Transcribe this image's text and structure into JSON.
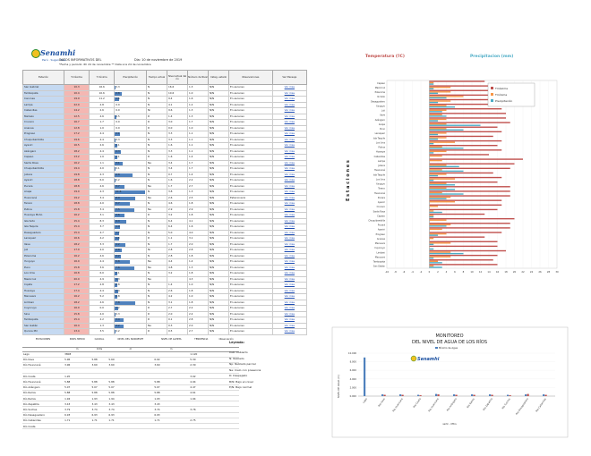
{
  "header": {
    "brand": "Senamhi",
    "tagline": "Perú · Sugen Tuse",
    "title": "DATOS INFORMATIVOS DEL",
    "date": "Dia: 10 de noviembre de 2019",
    "subtitle": "*Fecha y periodo: 6h 24 de noviembre  ** Data a la 24 de noviembre"
  },
  "table": {
    "headers": [
      "Estación",
      "T.máxima",
      "T.mínima",
      "Precipitación",
      "Tiempo actual",
      "Nivel actual del río",
      "Número de Nivel",
      "Categ. estado",
      "Observaciones",
      "Ver Mensaje"
    ],
    "rows": [
      [
        "San Gabriel",
        "10.3",
        "16.6",
        "0.3",
        "N",
        "16.6",
        "1.3",
        "N/N",
        "En ascenso",
        "Ver mas"
      ],
      [
        "Tambopata",
        "10.4",
        "10.6",
        "2.8",
        "N",
        "10.6",
        "1.0",
        "N/N",
        "En ascenso",
        "Ver mas"
      ],
      [
        "Cancosa",
        "19.9",
        "11.2",
        "1.6",
        "N",
        "9.4",
        "1.6",
        "N/N",
        "En ascenso",
        "Ver mas"
      ],
      [
        "Lampa",
        "22.0",
        "2.8",
        "0.0",
        "N",
        "4.1",
        "1.2",
        "N/N",
        "En ascenso",
        "Ver mas"
      ],
      [
        "Cabanillas",
        "14.2",
        "2.6",
        "0.0",
        "Ni",
        "9.6",
        "1.3",
        "N/N",
        "En ascenso",
        "Ver mas"
      ],
      [
        "Mañazo",
        "12.5",
        "4.6",
        "0.5",
        "D",
        "1.4",
        "1.3",
        "N/N",
        "En ascenso",
        "Ver mas"
      ],
      [
        "Crucero",
        "16.7",
        "1.7",
        "0.0",
        "D",
        "3.0",
        "1.7",
        "N/N",
        "En ascenso",
        "Ver mas"
      ],
      [
        "Ananea",
        "12.8",
        "1.0",
        "0.0",
        "D",
        "0.0",
        "1.0",
        "N/N",
        "En ascenso",
        "Ver mas"
      ],
      [
        "Progreso",
        "17.2",
        "4.4",
        "2.1",
        "N",
        "3.3",
        "1.1",
        "N/N",
        "En ascenso",
        "Ver mas"
      ],
      [
        "Chuquibambilla",
        "19.6",
        "4.4",
        "0.3",
        "N",
        "3.3",
        "1.1",
        "N/N",
        "En ascenso",
        "Ver mas"
      ],
      [
        "Ayaviri",
        "16.5",
        "2.6",
        "1.1",
        "N",
        "1.6",
        "1.1",
        "N/N",
        "En ascenso",
        "Ver mas"
      ],
      [
        "Azángaro",
        "18.2",
        "4.4",
        "2.3",
        "N",
        "3.3",
        "1.1",
        "N/N",
        "En ascenso",
        "Ver mas"
      ],
      [
        "Capaso",
        "13.2",
        "1.0",
        "1.1",
        "D",
        "1.6",
        "1.4",
        "N/N",
        "En ascenso",
        "Ver mas"
      ],
      [
        "Santa Rosa",
        "16.2",
        "1.1",
        "3.1",
        "Ne",
        "3.4",
        "1.7",
        "N/N",
        "En ascenso",
        "Ver mas"
      ],
      [
        "Chuquibambilla",
        "19.4",
        "4.0",
        "0.1",
        "N",
        "3.4",
        "1.7",
        "N/N",
        "En ascenso",
        "Ver mas"
      ],
      [
        "Juliaca",
        "19.8",
        "4.3",
        "6.8",
        "N",
        "0.7",
        "1.4",
        "N/N",
        "En ascenso",
        "Ver mas"
      ],
      [
        "Ayaviri",
        "18.8",
        "6.0",
        "0.2",
        "N",
        "1.6",
        "2.2",
        "N/N",
        "En ascenso",
        "Ver mas"
      ],
      [
        "Pucara",
        "18.8",
        "4.6",
        "3.7",
        "Ne",
        "1.7",
        "2.7",
        "N/N",
        "En ascenso",
        "Ver mas"
      ],
      [
        "Arapa",
        "19.0",
        "4.3",
        "11.6",
        "N",
        "3.8",
        "1.3",
        "N/N",
        "En ascenso",
        "Ver mas"
      ],
      [
        "Huancané",
        "19.2",
        "3.4",
        "8.0",
        "Ne",
        "2.6",
        "2.5",
        "N/N",
        "Estacionario",
        "Ver mas"
      ],
      [
        "Taraco",
        "18.8",
        "4.0",
        "5.7",
        "N",
        "4.6",
        "1.8",
        "N/N",
        "En ascenso",
        "Ver mas"
      ],
      [
        "Putina",
        "15.8",
        "3.4",
        "7.5",
        "Ne",
        "2.9",
        "2.9",
        "N/N",
        "En ascenso",
        "Ver mas"
      ],
      [
        "Huaraya Moho",
        "16.2",
        "3.1",
        "3.6",
        "D",
        "3.2",
        "1.8",
        "N/N",
        "En ascenso",
        "Ver mas"
      ],
      [
        "Isla Soto",
        "15.4",
        "8.3",
        "4.4",
        "N",
        "6.4",
        "4.1",
        "N/N",
        "En ascenso",
        "Ver mas"
      ],
      [
        "Isla Taquile",
        "15.4",
        "3.7",
        "1.9",
        "N",
        "6.4",
        "1.6",
        "N/N",
        "En ascenso",
        "Ver mas"
      ],
      [
        "Desaguadero",
        "15.4",
        "4.7",
        "1.7",
        "N",
        "5.0",
        "4.0",
        "N/N",
        "En ascenso",
        "Ver mas"
      ],
      [
        "Laraqueri",
        "16.6",
        "4.2",
        "1.8",
        "D",
        "1.1",
        "3.1",
        "N/N",
        "En ascenso",
        "Ver mas"
      ],
      [
        "Ilave",
        "18.2",
        "3.3",
        "4.2",
        "N",
        "1.7",
        "2.0",
        "N/N",
        "En ascenso",
        "Ver mas"
      ],
      [
        "Juli",
        "17.0",
        "4.0",
        "2.8",
        "Ni",
        "2.8",
        "2.8",
        "N/N",
        "En ascenso",
        "Ver mas"
      ],
      [
        "Pizacoma",
        "16.2",
        "4.6",
        "2.2",
        "N",
        "2.8",
        "1.8",
        "N/N",
        "En ascenso",
        "Ver mas"
      ],
      [
        "Yunguyo",
        "16.0",
        "4.4",
        "5.8",
        "Ne",
        "4.4",
        "1.4",
        "N/N",
        "En ascenso",
        "Ver mas"
      ],
      [
        "Puno",
        "15.8",
        "3.6",
        "7.6",
        "Ne",
        "4.8",
        "1.3",
        "N/N",
        "En ascenso",
        "Ver mas"
      ],
      [
        "Los Uros",
        "16.8",
        "6.0",
        "1.1",
        "N",
        "3.2",
        "1.8",
        "N/N",
        "En ascenso",
        "Ver mas"
      ],
      [
        "Mazocruz",
        "20.0",
        "4.9",
        "1.3",
        "Ne",
        "",
        "4.3",
        "N/N",
        "En ascenso",
        "Ver mas"
      ],
      [
        "Cojata",
        "17.2",
        "2.8",
        "0.8",
        "N",
        "1.4",
        "1.0",
        "N/N",
        "En ascenso",
        "Ver mas"
      ],
      [
        "Huaraya",
        "17.4",
        "4.4",
        "1.4",
        "N",
        "2.6",
        "1.8",
        "N/N",
        "En ascenso",
        "Ver mas"
      ],
      [
        "Macusani",
        "16.2",
        "5.2",
        "0.8",
        "N",
        "4.2",
        "1.0",
        "N/N",
        "En ascenso",
        "Ver mas"
      ],
      [
        "Limbani",
        "18.2",
        "4.6",
        "7.8",
        "N",
        "3.1",
        "1.8",
        "N/N",
        "En ascenso",
        "Ver mas"
      ],
      [
        "Cuyocuyo",
        "16.0",
        "0.0",
        "1.2",
        "D",
        "2.7",
        "2.2",
        "N/N",
        "En ascenso",
        "Ver mas"
      ],
      [
        "Sina",
        "15.8",
        "4.0",
        "0.3",
        "D",
        "2.0",
        "2.4",
        "N/N",
        "En ascenso",
        "Ver mas"
      ],
      [
        "Tambopata",
        "15.4",
        "2.2",
        "3.4",
        "D",
        "0.1",
        "2.8",
        "N/N",
        "En ascenso",
        "Ver mas"
      ],
      [
        "San Gabán",
        "16.4",
        "1.3",
        "3.2",
        "Ne",
        "0.3",
        "2.0",
        "N/N",
        "En ascenso",
        "Ver mas"
      ],
      [
        "Quince Mil",
        "13.4",
        "3.5",
        "0.2",
        "D",
        "0.5",
        "2.7",
        "N/N",
        "En ascenso",
        "Ver mas"
      ]
    ]
  },
  "river_table": {
    "headers": [
      "ESTACIONES",
      "NIVEL MEDIO",
      "CAUDAL",
      "NIVEL DEL NOROESTE",
      "NIVEL DE ALERTA",
      "TENDENCIA",
      "Observación"
    ],
    "sub": [
      "",
      "m",
      "m3/s",
      "m",
      "m",
      "",
      ""
    ],
    "rows": [
      [
        "Lago",
        "3808",
        "",
        "",
        "",
        "1.120",
        ""
      ],
      [
        "Río Ilave",
        "5.96",
        "5.88",
        "5.69",
        "0.02",
        "5.30",
        ""
      ],
      [
        "Río Huancané",
        "3.96",
        "3.60",
        "3.60",
        "3.60",
        "2.30",
        ""
      ],
      [
        "",
        "",
        "",
        "",
        "",
        "",
        ""
      ],
      [
        "Río Coata",
        "1.20",
        "",
        "",
        "",
        "3.02",
        ""
      ],
      [
        "Río Huancané",
        "5.88",
        "5.88",
        "5.88",
        "5.88",
        "4.94",
        ""
      ],
      [
        "Río Azángaro",
        "5.07",
        "5.07",
        "5.07",
        "5.07",
        "4.47",
        ""
      ],
      [
        "Río Ramis",
        "5.88",
        "5.88",
        "5.88",
        "5.88",
        "4.61",
        ""
      ],
      [
        "Río Ramis",
        "1.94",
        "1.93",
        "1.94",
        "1.93",
        "1.94",
        ""
      ],
      [
        "Río Zapatilla",
        "3.43",
        "3.43",
        "3.43",
        "3.43",
        "",
        ""
      ],
      [
        "Río Suches",
        "3.79",
        "3.74",
        "3.74",
        "3.74",
        "3.76",
        ""
      ],
      [
        "Río Desaguadero",
        "6.93",
        "6.93",
        "6.93",
        "6.93",
        "",
        ""
      ],
      [
        "Río Cabanillas",
        "1.71",
        "1.71",
        "1.71",
        "1.71",
        "2.75",
        ""
      ],
      [
        "Río Coata",
        "",
        "",
        "",
        "",
        "",
        ""
      ]
    ]
  },
  "legend": {
    "title": "Leyenda:",
    "items": [
      "Cub: Cubierto",
      "N: Nublado",
      "Np: Nublado parcial",
      "Ne: Cielo con presencia",
      "D: Despejado",
      "B/N: Bajo en nivel",
      "E/N: Bajo normal"
    ]
  },
  "chart_data": [
    {
      "type": "bar",
      "title": "Temperatura (ºC)",
      "title2": "Precipitacion (mm)",
      "ylabel": "E s t a c i o n e s",
      "legend": [
        "Tmáxima",
        "Tmínima",
        "Precipitación"
      ],
      "legend_placement": "top-right",
      "xticks": [
        "-10",
        "-8",
        "-6",
        "-4",
        "-2",
        "0",
        "2",
        "4",
        "6",
        "8",
        "10",
        "12",
        "14",
        "16",
        "18",
        "20",
        "22",
        "24",
        "26",
        "28",
        "30"
      ],
      "categories": [
        "Capaso",
        "Mazocruz",
        "Pizacoma",
        "Ilo Soto",
        "Desaguadero",
        "Yunguyo",
        "Juli",
        "Ilave",
        "Azángaro",
        "Arapa",
        "Puno",
        "Laraqueri",
        "Isla Taquile",
        "Los Uros",
        "Putina",
        "Huaraya",
        "Cabanillas",
        "Lampa",
        "Juliaca",
        "Huancané",
        "Isla Taquile",
        "Los Uros",
        "Yunguyo",
        "Taraco",
        "Huancané",
        "Pucara",
        "Ayaviri",
        "Crucero",
        "Santa Rosa",
        "Capaso",
        "Chuquibambilla",
        "Pucará",
        "Ayaviri",
        "Progreso",
        "Ananea",
        "Macusani",
        "Cuyocuyo",
        "Limbani",
        "Macusani",
        "Tambopata",
        "San Gabán"
      ],
      "series": [
        {
          "name": "Tmáxima",
          "color": "#c0504d",
          "values": [
            13,
            20,
            16,
            15,
            15,
            16,
            17,
            18,
            18,
            19,
            16,
            17,
            15,
            17,
            16,
            17,
            14,
            22,
            20,
            19,
            15,
            17,
            16,
            19,
            19,
            19,
            17,
            17,
            16,
            13,
            20,
            19,
            19,
            17,
            13,
            16,
            16,
            18,
            16,
            15,
            16
          ]
        },
        {
          "name": "Tmínima",
          "color": "#f79646",
          "values": [
            1,
            5,
            5,
            8,
            5,
            4,
            4,
            3,
            4,
            4,
            4,
            4,
            4,
            6,
            3,
            4,
            3,
            3,
            4,
            3,
            4,
            6,
            4,
            4,
            3,
            5,
            6,
            2,
            1,
            1,
            4,
            5,
            3,
            4,
            1,
            5,
            0,
            5,
            5,
            2,
            1
          ]
        },
        {
          "name": "Precipitación",
          "color": "#4bacc6",
          "values": [
            1,
            1,
            2,
            4,
            2,
            6,
            3,
            4,
            2,
            12,
            8,
            2,
            2,
            1,
            8,
            1,
            0,
            0,
            7,
            8,
            2,
            1,
            6,
            6,
            8,
            4,
            0,
            0,
            3,
            1,
            0,
            4,
            0,
            2,
            0,
            1,
            1,
            8,
            1,
            3,
            3
          ]
        }
      ],
      "xlim": [
        -10,
        30
      ]
    },
    {
      "type": "bar",
      "title": "MONITOREO",
      "subtitle": "DEL NIVEL DE AGUA DE LOS RÍOS",
      "xlabel": "ssrlk - Mtrs",
      "ylabel": "NIVEL DE AGUA (m)",
      "legend": [
        "Mínimo de Agua"
      ],
      "yticks": [
        "0.000",
        "2.000",
        "4.000",
        "6.000",
        "8.000",
        "10.000"
      ],
      "categories": [
        "Lago",
        "Río Ilave",
        "Río Huancané",
        "Río Coata",
        "Río Huancané",
        "Río Azángaro",
        "Río Ramis",
        "Río Zapatilla",
        "Río Suches",
        "Río Desaguadero",
        "Río Cabanillas"
      ],
      "series": [
        {
          "name": "Nivel",
          "color": "#4f81bd",
          "values": [
            9.0,
            0.4,
            0.4,
            0.3,
            0.5,
            0.4,
            0.4,
            0.4,
            0.3,
            0.4,
            0.4
          ]
        },
        {
          "name": "Umbral",
          "color": "#c0504d",
          "values": [
            0.0,
            0.3,
            0.3,
            0.2,
            0.4,
            0.3,
            0.3,
            0.3,
            0.2,
            0.5,
            0.3
          ]
        }
      ],
      "ylim": [
        0,
        10
      ]
    }
  ]
}
